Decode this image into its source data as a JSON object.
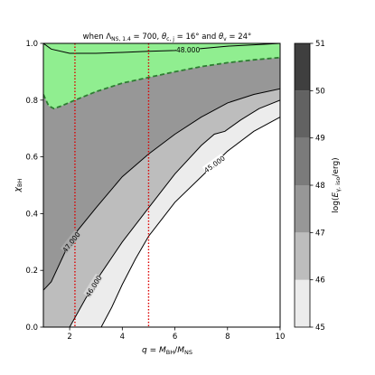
{
  "chart_data": {
    "type": "contour",
    "title": "when Λ_NS,1.4 = 700, θ_c,j = 16° and θ_v = 24°",
    "xlabel": "q = M_BH/M_NS",
    "ylabel": "χ_BH",
    "xlim": [
      1,
      10
    ],
    "ylim": [
      0,
      1
    ],
    "xticks": [
      2,
      4,
      6,
      8,
      10
    ],
    "yticks": [
      0.0,
      0.2,
      0.4,
      0.6,
      0.8,
      1.0
    ],
    "xtick_labels": [
      "2",
      "4",
      "6",
      "8",
      "10"
    ],
    "ytick_labels": [
      "0.0",
      "0.2",
      "0.4",
      "0.6",
      "0.8",
      "1.0"
    ],
    "colorbar": {
      "label": "log(E_γ,iso/erg)",
      "levels": [
        45,
        46,
        47,
        48,
        49,
        50,
        51
      ],
      "tick_labels": [
        "45",
        "46",
        "47",
        "48",
        "49",
        "50",
        "51"
      ],
      "colors": [
        "#ececec",
        "#bdbdbd",
        "#979797",
        "#7b7b7b",
        "#626262",
        "#3f3f3f",
        "#161616"
      ]
    },
    "contours": [
      {
        "level": 45,
        "label": "45.000",
        "points": [
          [
            3.2,
            0.0
          ],
          [
            3.6,
            0.07
          ],
          [
            4.0,
            0.15
          ],
          [
            4.5,
            0.24
          ],
          [
            5.0,
            0.32
          ],
          [
            5.5,
            0.38
          ],
          [
            6.0,
            0.44
          ],
          [
            7.0,
            0.53
          ],
          [
            8.0,
            0.62
          ],
          [
            9.0,
            0.69
          ],
          [
            10.0,
            0.74
          ]
        ]
      },
      {
        "level": 46,
        "label": "46.000",
        "points": [
          [
            2.0,
            0.0
          ],
          [
            2.6,
            0.1
          ],
          [
            3.2,
            0.19
          ],
          [
            4.0,
            0.3
          ],
          [
            5.0,
            0.42
          ],
          [
            6.0,
            0.54
          ],
          [
            7.0,
            0.64
          ],
          [
            7.5,
            0.68
          ],
          [
            7.9,
            0.69
          ],
          [
            8.5,
            0.73
          ],
          [
            9.2,
            0.77
          ],
          [
            10.0,
            0.8
          ]
        ]
      },
      {
        "level": 47,
        "label": "47.000",
        "points": [
          [
            1.0,
            0.13
          ],
          [
            1.3,
            0.16
          ],
          [
            1.8,
            0.26
          ],
          [
            2.3,
            0.34
          ],
          [
            3.0,
            0.42
          ],
          [
            4.0,
            0.53
          ],
          [
            5.0,
            0.61
          ],
          [
            6.0,
            0.68
          ],
          [
            7.0,
            0.74
          ],
          [
            8.0,
            0.79
          ],
          [
            9.0,
            0.82
          ],
          [
            10.0,
            0.84
          ]
        ]
      },
      {
        "level": 48,
        "label": "48.000",
        "points": [
          [
            1.0,
            1.0
          ],
          [
            1.3,
            0.98
          ],
          [
            2.0,
            0.965
          ],
          [
            3.0,
            0.965
          ],
          [
            4.0,
            0.968
          ],
          [
            5.0,
            0.972
          ],
          [
            6.0,
            0.975
          ],
          [
            7.0,
            0.982
          ],
          [
            8.0,
            0.99
          ],
          [
            9.0,
            0.995
          ],
          [
            10.0,
            1.0
          ]
        ]
      }
    ],
    "green_region": {
      "color": "#90ee90",
      "style": "dashed",
      "boundary": [
        [
          1.0,
          0.82
        ],
        [
          1.2,
          0.78
        ],
        [
          1.4,
          0.77
        ],
        [
          1.7,
          0.78
        ],
        [
          2.2,
          0.8
        ],
        [
          3.0,
          0.83
        ],
        [
          4.0,
          0.86
        ],
        [
          5.0,
          0.88
        ],
        [
          6.0,
          0.9
        ],
        [
          7.0,
          0.918
        ],
        [
          8.0,
          0.932
        ],
        [
          9.0,
          0.942
        ],
        [
          10.0,
          0.95
        ]
      ]
    },
    "vertical_lines": [
      {
        "x": 2.2,
        "color": "#dd0000",
        "style": "dotted"
      },
      {
        "x": 5.0,
        "color": "#dd0000",
        "style": "dotted"
      }
    ],
    "background_color": "#979797"
  }
}
